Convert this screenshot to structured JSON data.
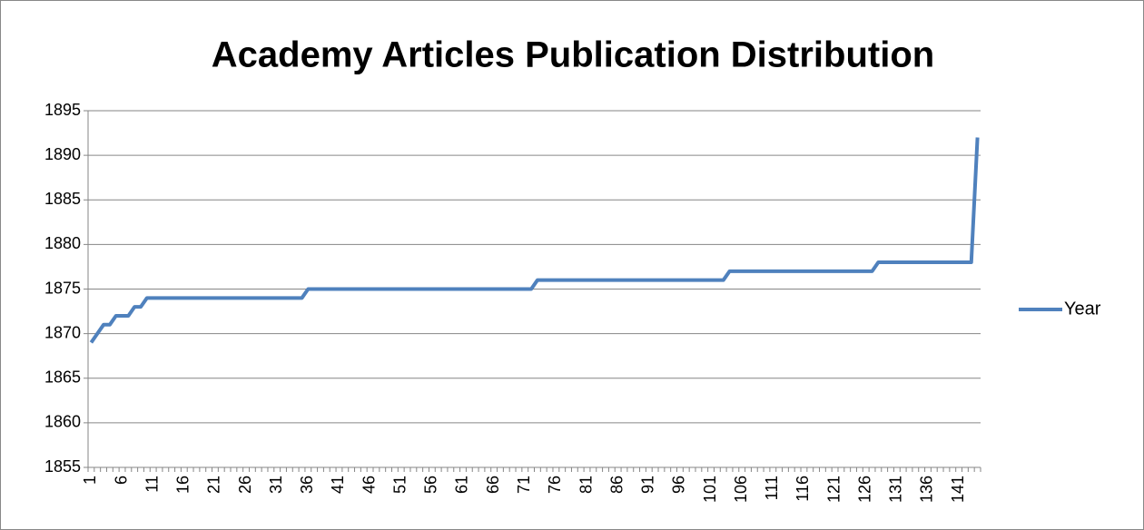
{
  "chart_data": {
    "type": "line",
    "title": "Academy Articles Publication Distribution",
    "categories": [
      1,
      null,
      null,
      null,
      null,
      6,
      null,
      null,
      null,
      null,
      11,
      null,
      null,
      null,
      null,
      16,
      null,
      null,
      null,
      null,
      21,
      null,
      null,
      null,
      null,
      26,
      null,
      null,
      null,
      null,
      31,
      null,
      null,
      null,
      null,
      36,
      null,
      null,
      null,
      null,
      41,
      null,
      null,
      null,
      null,
      46,
      null,
      null,
      null,
      null,
      51,
      null,
      null,
      null,
      null,
      56,
      null,
      null,
      null,
      null,
      61,
      null,
      null,
      null,
      null,
      66,
      null,
      null,
      null,
      null,
      71,
      null,
      null,
      null,
      null,
      76,
      null,
      null,
      null,
      null,
      81,
      null,
      null,
      null,
      null,
      86,
      null,
      null,
      null,
      null,
      91,
      null,
      null,
      null,
      null,
      96,
      null,
      null,
      null,
      null,
      101,
      null,
      null,
      null,
      null,
      106,
      null,
      null,
      null,
      null,
      111,
      null,
      null,
      null,
      null,
      116,
      null,
      null,
      null,
      null,
      121,
      null,
      null,
      null,
      null,
      126,
      null,
      null,
      null,
      null,
      131,
      null,
      null,
      null,
      null,
      136,
      null,
      null,
      null,
      null,
      141,
      null,
      null,
      null
    ],
    "series": [
      {
        "name": "Year",
        "color": "#4f81bd",
        "values": [
          1869,
          1870,
          1871,
          1871,
          1872,
          1872,
          1872,
          1873,
          1873,
          1874,
          1874,
          1874,
          1874,
          1874,
          1874,
          1874,
          1874,
          1874,
          1874,
          1874,
          1874,
          1874,
          1874,
          1874,
          1874,
          1874,
          1874,
          1874,
          1874,
          1874,
          1874,
          1874,
          1874,
          1874,
          1874,
          1875,
          1875,
          1875,
          1875,
          1875,
          1875,
          1875,
          1875,
          1875,
          1875,
          1875,
          1875,
          1875,
          1875,
          1875,
          1875,
          1875,
          1875,
          1875,
          1875,
          1875,
          1875,
          1875,
          1875,
          1875,
          1875,
          1875,
          1875,
          1875,
          1875,
          1875,
          1875,
          1875,
          1875,
          1875,
          1875,
          1875,
          1876,
          1876,
          1876,
          1876,
          1876,
          1876,
          1876,
          1876,
          1876,
          1876,
          1876,
          1876,
          1876,
          1876,
          1876,
          1876,
          1876,
          1876,
          1876,
          1876,
          1876,
          1876,
          1876,
          1876,
          1876,
          1876,
          1876,
          1876,
          1876,
          1876,
          1876,
          1877,
          1877,
          1877,
          1877,
          1877,
          1877,
          1877,
          1877,
          1877,
          1877,
          1877,
          1877,
          1877,
          1877,
          1877,
          1877,
          1877,
          1877,
          1877,
          1877,
          1877,
          1877,
          1877,
          1877,
          1878,
          1878,
          1878,
          1878,
          1878,
          1878,
          1878,
          1878,
          1878,
          1878,
          1878,
          1878,
          1878,
          1878,
          1878,
          1878,
          1892
        ]
      }
    ],
    "ylim": [
      1855,
      1895
    ],
    "yticks": [
      1855,
      1860,
      1865,
      1870,
      1875,
      1880,
      1885,
      1890,
      1895
    ],
    "grid": true,
    "legend": "right"
  }
}
